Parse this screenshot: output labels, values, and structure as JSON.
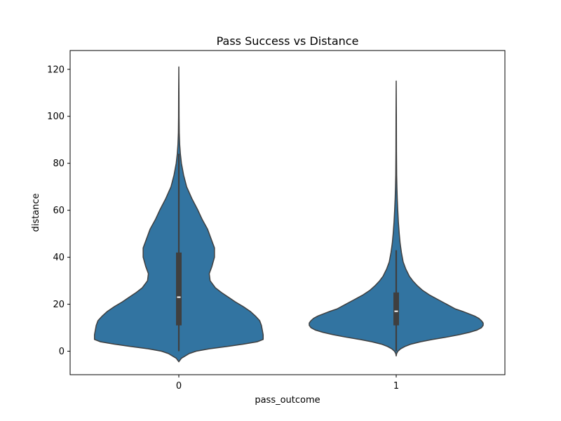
{
  "chart_data": {
    "type": "violin",
    "title": "Pass Success vs Distance",
    "xlabel": "pass_outcome",
    "ylabel": "distance",
    "categories": [
      "0",
      "1"
    ],
    "ylim": [
      -10,
      128
    ],
    "yticks": [
      0,
      20,
      40,
      60,
      80,
      100,
      120
    ],
    "grid": false,
    "color": "#3274a1",
    "edge_color": "#3f3f3f",
    "violins": [
      {
        "category": "0",
        "range": [
          0,
          121
        ],
        "whisker": [
          0,
          84
        ],
        "q1": 11,
        "median": 23,
        "q3": 42,
        "density_profile": [
          [
            -4.5,
            0.0
          ],
          [
            -3,
            0.03
          ],
          [
            -1,
            0.12
          ],
          [
            0,
            0.2
          ],
          [
            1,
            0.35
          ],
          [
            2,
            0.55
          ],
          [
            3,
            0.74
          ],
          [
            4,
            0.9
          ],
          [
            5,
            0.97
          ],
          [
            7,
            0.97
          ],
          [
            9,
            0.96
          ],
          [
            11,
            0.95
          ],
          [
            13,
            0.93
          ],
          [
            15,
            0.88
          ],
          [
            17,
            0.82
          ],
          [
            19,
            0.74
          ],
          [
            21,
            0.65
          ],
          [
            23,
            0.57
          ],
          [
            25,
            0.49
          ],
          [
            27,
            0.42
          ],
          [
            30,
            0.36
          ],
          [
            33,
            0.35
          ],
          [
            36,
            0.38
          ],
          [
            40,
            0.41
          ],
          [
            44,
            0.41
          ],
          [
            48,
            0.37
          ],
          [
            52,
            0.33
          ],
          [
            56,
            0.27
          ],
          [
            60,
            0.22
          ],
          [
            65,
            0.15
          ],
          [
            70,
            0.09
          ],
          [
            75,
            0.055
          ],
          [
            80,
            0.03
          ],
          [
            84,
            0.018
          ],
          [
            88,
            0.01
          ],
          [
            93,
            0.005
          ],
          [
            100,
            0.003
          ],
          [
            110,
            0.002
          ],
          [
            121,
            0.0
          ]
        ]
      },
      {
        "category": "1",
        "range": [
          -2,
          115
        ],
        "whisker": [
          0,
          43
        ],
        "q1": 11,
        "median": 17,
        "q3": 25,
        "density_profile": [
          [
            -2,
            0.0
          ],
          [
            -1,
            0.005
          ],
          [
            0,
            0.02
          ],
          [
            1,
            0.05
          ],
          [
            2,
            0.1
          ],
          [
            3,
            0.17
          ],
          [
            4,
            0.28
          ],
          [
            5,
            0.42
          ],
          [
            6,
            0.58
          ],
          [
            7,
            0.72
          ],
          [
            8,
            0.84
          ],
          [
            9,
            0.93
          ],
          [
            10,
            0.98
          ],
          [
            11,
            1.0
          ],
          [
            12,
            1.0
          ],
          [
            13,
            0.98
          ],
          [
            14,
            0.95
          ],
          [
            15,
            0.9
          ],
          [
            16,
            0.83
          ],
          [
            17,
            0.76
          ],
          [
            18,
            0.68
          ],
          [
            20,
            0.58
          ],
          [
            22,
            0.48
          ],
          [
            24,
            0.38
          ],
          [
            26,
            0.3
          ],
          [
            28,
            0.24
          ],
          [
            30,
            0.19
          ],
          [
            32,
            0.15
          ],
          [
            35,
            0.11
          ],
          [
            38,
            0.08
          ],
          [
            42,
            0.06
          ],
          [
            46,
            0.045
          ],
          [
            50,
            0.035
          ],
          [
            55,
            0.025
          ],
          [
            60,
            0.018
          ],
          [
            65,
            0.012
          ],
          [
            70,
            0.008
          ],
          [
            75,
            0.005
          ],
          [
            85,
            0.003
          ],
          [
            100,
            0.002
          ],
          [
            115,
            0.0
          ]
        ]
      }
    ]
  }
}
